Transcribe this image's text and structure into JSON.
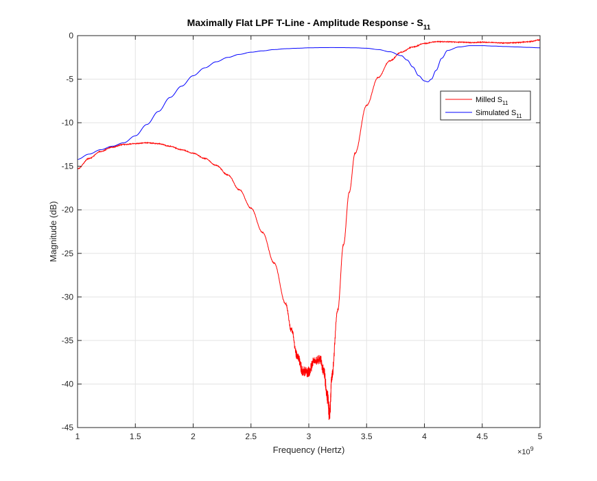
{
  "chart_data": {
    "type": "line",
    "title": "Maximally Flat LPF T-Line - Amplitude Response - S",
    "title_subscript": "11",
    "xlabel": "Frequency (Hertz)",
    "ylabel": "Magnitude (dB)",
    "x_exponent_prefix": "×10",
    "x_exponent_power": "9",
    "xlim": [
      1000000000.0,
      5000000000.0
    ],
    "ylim": [
      -45,
      0
    ],
    "xticks": [
      1000000000.0,
      1500000000.0,
      2000000000.0,
      2500000000.0,
      3000000000.0,
      3500000000.0,
      4000000000.0,
      4500000000.0,
      5000000000.0
    ],
    "xtick_labels": [
      "1",
      "1.5",
      "2",
      "2.5",
      "3",
      "3.5",
      "4",
      "4.5",
      "5"
    ],
    "yticks": [
      0,
      -5,
      -10,
      -15,
      -20,
      -25,
      -30,
      -35,
      -40,
      -45
    ],
    "ytick_labels": [
      "0",
      "-5",
      "-10",
      "-15",
      "-20",
      "-25",
      "-30",
      "-35",
      "-40",
      "-45"
    ],
    "grid": true,
    "legend_position": "top-right",
    "series": [
      {
        "name": "Milled S",
        "name_subscript": "11",
        "color": "#ff0000",
        "noisy": true,
        "x": [
          1000000000.0,
          1100000000.0,
          1200000000.0,
          1300000000.0,
          1400000000.0,
          1500000000.0,
          1600000000.0,
          1700000000.0,
          1800000000.0,
          1900000000.0,
          2000000000.0,
          2100000000.0,
          2200000000.0,
          2300000000.0,
          2400000000.0,
          2500000000.0,
          2600000000.0,
          2700000000.0,
          2800000000.0,
          2850000000.0,
          2900000000.0,
          2950000000.0,
          3000000000.0,
          3050000000.0,
          3100000000.0,
          3130000000.0,
          3160000000.0,
          3180000000.0,
          3200000000.0,
          3250000000.0,
          3300000000.0,
          3350000000.0,
          3400000000.0,
          3500000000.0,
          3600000000.0,
          3700000000.0,
          3800000000.0,
          3900000000.0,
          4000000000.0,
          4100000000.0,
          4200000000.0,
          4300000000.0,
          4400000000.0,
          4500000000.0,
          4600000000.0,
          4700000000.0,
          4800000000.0,
          4900000000.0,
          5000000000.0
        ],
        "y": [
          -15.3,
          -14.1,
          -13.3,
          -12.8,
          -12.5,
          -12.4,
          -12.3,
          -12.4,
          -12.7,
          -13.1,
          -13.5,
          -14.1,
          -14.9,
          -16.0,
          -17.7,
          -19.8,
          -22.6,
          -26.1,
          -30.8,
          -33.8,
          -36.8,
          -38.5,
          -38.6,
          -37.3,
          -37.2,
          -38.5,
          -41.5,
          -43.5,
          -39.0,
          -31.5,
          -24.0,
          -18.0,
          -13.5,
          -8.0,
          -4.8,
          -2.9,
          -1.9,
          -1.3,
          -0.9,
          -0.7,
          -0.7,
          -0.75,
          -0.8,
          -0.75,
          -0.8,
          -0.85,
          -0.8,
          -0.7,
          -0.5
        ]
      },
      {
        "name": "Simulated S",
        "name_subscript": "11",
        "color": "#0000ff",
        "noisy": false,
        "x": [
          1000000000.0,
          1100000000.0,
          1200000000.0,
          1300000000.0,
          1400000000.0,
          1500000000.0,
          1600000000.0,
          1700000000.0,
          1800000000.0,
          1900000000.0,
          2000000000.0,
          2100000000.0,
          2200000000.0,
          2300000000.0,
          2400000000.0,
          2500000000.0,
          2600000000.0,
          2700000000.0,
          2800000000.0,
          2900000000.0,
          3000000000.0,
          3100000000.0,
          3200000000.0,
          3300000000.0,
          3400000000.0,
          3500000000.0,
          3600000000.0,
          3700000000.0,
          3800000000.0,
          3850000000.0,
          3900000000.0,
          3950000000.0,
          4000000000.0,
          4030000000.0,
          4060000000.0,
          4100000000.0,
          4150000000.0,
          4200000000.0,
          4300000000.0,
          4400000000.0,
          4500000000.0,
          4600000000.0,
          4700000000.0,
          4800000000.0,
          4900000000.0,
          5000000000.0
        ],
        "y": [
          -14.2,
          -13.6,
          -13.1,
          -12.7,
          -12.3,
          -11.5,
          -10.2,
          -8.7,
          -7.1,
          -5.8,
          -4.6,
          -3.7,
          -3.0,
          -2.5,
          -2.15,
          -1.9,
          -1.75,
          -1.6,
          -1.5,
          -1.45,
          -1.4,
          -1.38,
          -1.37,
          -1.38,
          -1.4,
          -1.45,
          -1.6,
          -1.85,
          -2.3,
          -2.8,
          -3.6,
          -4.6,
          -5.2,
          -5.3,
          -5.0,
          -4.0,
          -2.6,
          -1.7,
          -1.3,
          -1.15,
          -1.15,
          -1.2,
          -1.25,
          -1.3,
          -1.35,
          -1.4
        ]
      }
    ]
  }
}
